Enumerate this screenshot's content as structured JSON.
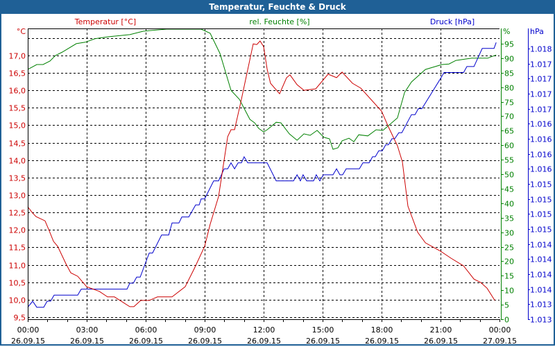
{
  "window": {
    "title": "Temperatur, Feuchte & Druck"
  },
  "colors": {
    "titlebar": "#1f6096",
    "temperature": "#cc0000",
    "humidity": "#008000",
    "pressure": "#0000cc",
    "grid": "#000000"
  },
  "chart_data": {
    "type": "line",
    "title": "Temperatur, Feuchte & Druck",
    "xlabel": "",
    "x_unit": "hours since 26.09.15 00:00",
    "xlim": [
      0,
      24
    ],
    "x_ticks": [
      {
        "time": "00:00",
        "date": "26.09.15"
      },
      {
        "time": "03:00",
        "date": "26.09.15"
      },
      {
        "time": "06:00",
        "date": "26.09.15"
      },
      {
        "time": "09:00",
        "date": "26.09.15"
      },
      {
        "time": "12:00",
        "date": "26.09.15"
      },
      {
        "time": "15:00",
        "date": "26.09.15"
      },
      {
        "time": "18:00",
        "date": "26.09.15"
      },
      {
        "time": "21:00",
        "date": "26.09.15"
      },
      {
        "time": "00:00",
        "date": "27.09.15"
      }
    ],
    "grid": true,
    "axes": {
      "temperature": {
        "title": "Temperatur [°C]",
        "unit": "°C",
        "ylim": [
          9.5,
          17.5
        ],
        "ticks": [
          "9,5",
          "10,0",
          "10,5",
          "11,0",
          "11,5",
          "12,0",
          "12,5",
          "13,0",
          "13,5",
          "14,0",
          "14,5",
          "15,0",
          "15,5",
          "16,0",
          "16,5",
          "17,0"
        ]
      },
      "humidity": {
        "title": "rel. Feuchte [%]",
        "unit": "%",
        "ylim": [
          0,
          100
        ],
        "ticks": [
          "0",
          "5",
          "10",
          "15",
          "20",
          "25",
          "30",
          "35",
          "40",
          "45",
          "50",
          "55",
          "60",
          "65",
          "70",
          "75",
          "80",
          "85",
          "90",
          "95"
        ]
      },
      "pressure": {
        "title": "Druck [hPa]",
        "unit": "hPa",
        "ylim": [
          1013.0,
          1017.5
        ],
        "ticks": [
          "1.013",
          "1.013",
          "1.014",
          "1.014",
          "1.014",
          "1.014",
          "1.015",
          "1.015",
          "1.015",
          "1.015",
          "1.016",
          "1.016",
          "1.016",
          "1.016",
          "1.017",
          "1.017",
          "1.017",
          "1.017",
          "1.018"
        ]
      }
    },
    "series": [
      {
        "name": "Temperatur [°C]",
        "axis": "temperature",
        "points": [
          [
            0,
            12.66
          ],
          [
            0.25,
            12.48
          ],
          [
            0.42,
            12.38
          ],
          [
            0.88,
            12.26
          ],
          [
            1.06,
            12.02
          ],
          [
            1.31,
            11.67
          ],
          [
            1.52,
            11.53
          ],
          [
            1.94,
            11.03
          ],
          [
            2.19,
            10.77
          ],
          [
            2.54,
            10.67
          ],
          [
            3.0,
            10.37
          ],
          [
            3.64,
            10.24
          ],
          [
            4.06,
            10.08
          ],
          [
            4.41,
            10.08
          ],
          [
            5.19,
            9.8
          ],
          [
            5.4,
            9.8
          ],
          [
            5.75,
            9.98
          ],
          [
            6.18,
            9.98
          ],
          [
            6.6,
            10.08
          ],
          [
            7.34,
            10.08
          ],
          [
            8.01,
            10.37
          ],
          [
            8.47,
            10.89
          ],
          [
            9.0,
            11.53
          ],
          [
            9.28,
            12.16
          ],
          [
            9.71,
            12.96
          ],
          [
            10.17,
            14.67
          ],
          [
            10.34,
            14.87
          ],
          [
            10.52,
            14.87
          ],
          [
            10.84,
            15.66
          ],
          [
            11.47,
            17.33
          ],
          [
            11.65,
            17.31
          ],
          [
            11.82,
            17.41
          ],
          [
            12.0,
            17.25
          ],
          [
            12.18,
            16.6
          ],
          [
            12.35,
            16.2
          ],
          [
            12.81,
            15.9
          ],
          [
            13.17,
            16.36
          ],
          [
            13.34,
            16.44
          ],
          [
            13.7,
            16.16
          ],
          [
            14.05,
            16.0
          ],
          [
            14.65,
            16.04
          ],
          [
            15.28,
            16.46
          ],
          [
            15.71,
            16.36
          ],
          [
            15.99,
            16.52
          ],
          [
            16.52,
            16.2
          ],
          [
            16.94,
            16.06
          ],
          [
            18.0,
            15.4
          ],
          [
            18.35,
            14.95
          ],
          [
            18.81,
            14.41
          ],
          [
            19.06,
            13.95
          ],
          [
            19.34,
            12.68
          ],
          [
            19.84,
            11.93
          ],
          [
            20.23,
            11.63
          ],
          [
            21.0,
            11.39
          ],
          [
            21.53,
            11.19
          ],
          [
            22.17,
            10.97
          ],
          [
            22.7,
            10.59
          ],
          [
            23.05,
            10.49
          ],
          [
            23.37,
            10.33
          ],
          [
            23.76,
            9.98
          ]
        ]
      },
      {
        "name": "rel. Feuchte [%]",
        "axis": "humidity",
        "points": [
          [
            0,
            86.1
          ],
          [
            0.46,
            87.8
          ],
          [
            0.78,
            87.8
          ],
          [
            1.13,
            89.0
          ],
          [
            1.41,
            90.9
          ],
          [
            1.76,
            92.1
          ],
          [
            2.47,
            95.0
          ],
          [
            2.93,
            95.5
          ],
          [
            3.42,
            96.7
          ],
          [
            4.13,
            97.4
          ],
          [
            5.19,
            98.1
          ],
          [
            5.89,
            99.3
          ],
          [
            7.06,
            100
          ],
          [
            8.82,
            100
          ],
          [
            9.28,
            98.6
          ],
          [
            9.78,
            91.6
          ],
          [
            10.34,
            78.9
          ],
          [
            10.77,
            75.8
          ],
          [
            11.3,
            68.9
          ],
          [
            11.54,
            67.7
          ],
          [
            11.75,
            65.8
          ],
          [
            12.0,
            64.6
          ],
          [
            12.18,
            65.3
          ],
          [
            12.64,
            67.9
          ],
          [
            12.88,
            67.7
          ],
          [
            13.31,
            63.9
          ],
          [
            13.7,
            61.7
          ],
          [
            14.05,
            63.9
          ],
          [
            14.37,
            63.4
          ],
          [
            14.72,
            65.1
          ],
          [
            15.07,
            62.7
          ],
          [
            15.35,
            62.2
          ],
          [
            15.53,
            58.6
          ],
          [
            15.78,
            59.1
          ],
          [
            15.99,
            61.5
          ],
          [
            16.34,
            62.4
          ],
          [
            16.59,
            61.2
          ],
          [
            16.84,
            63.6
          ],
          [
            17.3,
            63.2
          ],
          [
            17.72,
            65.3
          ],
          [
            18.07,
            65.1
          ],
          [
            18.81,
            69.4
          ],
          [
            19.17,
            78.2
          ],
          [
            19.52,
            81.8
          ],
          [
            20.23,
            86.1
          ],
          [
            21.07,
            87.8
          ],
          [
            21.43,
            88.0
          ],
          [
            21.78,
            89.2
          ],
          [
            22.59,
            90.0
          ],
          [
            23.4,
            90.0
          ],
          [
            23.83,
            91.1
          ]
        ]
      },
      {
        "name": "Druck [hPa]",
        "axis": "pressure",
        "points": [
          [
            0,
            1013.2
          ],
          [
            0.25,
            1013.3
          ],
          [
            0.46,
            1013.2
          ],
          [
            0.81,
            1013.2
          ],
          [
            0.99,
            1013.3
          ],
          [
            1.16,
            1013.3
          ],
          [
            1.34,
            1013.4
          ],
          [
            2.54,
            1013.4
          ],
          [
            2.72,
            1013.5
          ],
          [
            5.05,
            1013.5
          ],
          [
            5.19,
            1013.6
          ],
          [
            5.37,
            1013.6
          ],
          [
            5.54,
            1013.7
          ],
          [
            5.72,
            1013.7
          ],
          [
            6.18,
            1014.1
          ],
          [
            6.35,
            1014.1
          ],
          [
            6.81,
            1014.4
          ],
          [
            7.17,
            1014.4
          ],
          [
            7.34,
            1014.6
          ],
          [
            7.69,
            1014.6
          ],
          [
            7.84,
            1014.7
          ],
          [
            8.19,
            1014.7
          ],
          [
            8.54,
            1014.9
          ],
          [
            8.72,
            1014.9
          ],
          [
            8.82,
            1015.0
          ],
          [
            9.0,
            1015.0
          ],
          [
            9.46,
            1015.3
          ],
          [
            9.71,
            1015.3
          ],
          [
            9.99,
            1015.5
          ],
          [
            10.17,
            1015.5
          ],
          [
            10.34,
            1015.6
          ],
          [
            10.52,
            1015.5
          ],
          [
            10.7,
            1015.6
          ],
          [
            10.87,
            1015.6
          ],
          [
            11.01,
            1015.7
          ],
          [
            11.19,
            1015.6
          ],
          [
            12.18,
            1015.6
          ],
          [
            12.64,
            1015.3
          ],
          [
            13.52,
            1015.3
          ],
          [
            13.7,
            1015.4
          ],
          [
            13.87,
            1015.3
          ],
          [
            14.01,
            1015.4
          ],
          [
            14.19,
            1015.3
          ],
          [
            14.54,
            1015.3
          ],
          [
            14.68,
            1015.4
          ],
          [
            14.86,
            1015.3
          ],
          [
            15.04,
            1015.4
          ],
          [
            15.53,
            1015.4
          ],
          [
            15.71,
            1015.5
          ],
          [
            15.88,
            1015.4
          ],
          [
            16.02,
            1015.4
          ],
          [
            16.2,
            1015.5
          ],
          [
            16.87,
            1015.5
          ],
          [
            17.05,
            1015.6
          ],
          [
            17.37,
            1015.6
          ],
          [
            17.54,
            1015.7
          ],
          [
            17.68,
            1015.7
          ],
          [
            17.86,
            1015.8
          ],
          [
            18.04,
            1015.8
          ],
          [
            18.21,
            1015.9
          ],
          [
            18.35,
            1015.9
          ],
          [
            18.53,
            1016.0
          ],
          [
            18.67,
            1016.0
          ],
          [
            18.88,
            1016.1
          ],
          [
            19.03,
            1016.1
          ],
          [
            19.52,
            1016.4
          ],
          [
            19.7,
            1016.4
          ],
          [
            19.87,
            1016.5
          ],
          [
            20.05,
            1016.5
          ],
          [
            21.0,
            1017.0
          ],
          [
            21.18,
            1017.1
          ],
          [
            22.17,
            1017.1
          ],
          [
            22.34,
            1017.2
          ],
          [
            22.7,
            1017.2
          ],
          [
            23.12,
            1017.5
          ],
          [
            23.72,
            1017.5
          ],
          [
            23.83,
            1017.6
          ]
        ]
      }
    ]
  }
}
